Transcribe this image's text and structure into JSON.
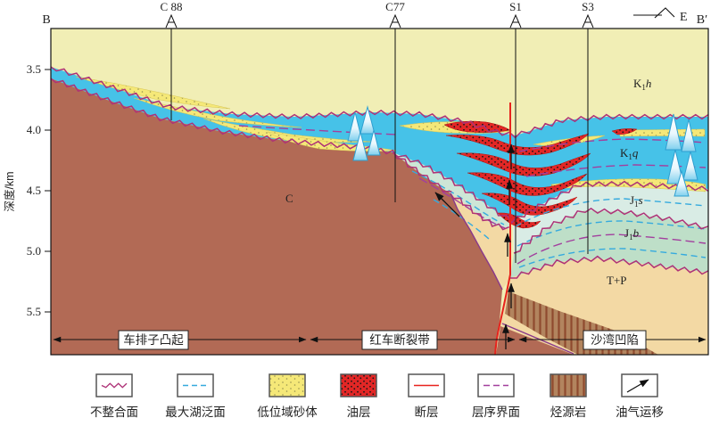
{
  "figure": {
    "endpoints": {
      "left": "B",
      "right": "B′"
    },
    "direction_label": "E",
    "wells": [
      {
        "name": "C 88"
      },
      {
        "name": "C77"
      },
      {
        "name": "S1"
      },
      {
        "name": "S3"
      }
    ],
    "axis": {
      "title": "深度/km",
      "ticks": [
        "3.5",
        "4.0",
        "4.5",
        "5.0",
        "5.5"
      ]
    },
    "units": {
      "k1h": {
        "base": "K",
        "sub": "1",
        "it": "h"
      },
      "k1q": {
        "base": "K",
        "sub": "1",
        "it": "q"
      },
      "j1s": {
        "base": "J",
        "sub": "1",
        "it": "s"
      },
      "j1b": {
        "base": "J",
        "sub": "1",
        "it": "b"
      },
      "c": "C",
      "tp": "T+P"
    },
    "zones": [
      {
        "label": "车排子凸起"
      },
      {
        "label": "红车断裂带"
      },
      {
        "label": "沙湾凹陷"
      }
    ]
  },
  "legend": {
    "items": [
      {
        "label": "不整合面"
      },
      {
        "label": "最大湖泛面"
      },
      {
        "label": "低位域砂体"
      },
      {
        "label": "油层"
      },
      {
        "label": "断层"
      },
      {
        "label": "层序界面"
      },
      {
        "label": "烃源岩"
      },
      {
        "label": "油气运移"
      }
    ]
  },
  "colors": {
    "k1h": "#f1eeb5",
    "k1q": "#46c2e8",
    "carboniferous": "#b26a55",
    "j_wedge": "#cde6d6",
    "j1s": "#d9ece5",
    "j1b": "#bedfc8",
    "tp": "#f3d9a4",
    "unconformity": "#ae3277",
    "max_flooding": "#35aade",
    "sequence_boundary": "#a23f9e",
    "fault": "#e8231d",
    "oil": "#e32726",
    "sand": "#f5e878",
    "source_rock": "#b2845e",
    "source_rock_hatch": "#8f4a2e"
  }
}
